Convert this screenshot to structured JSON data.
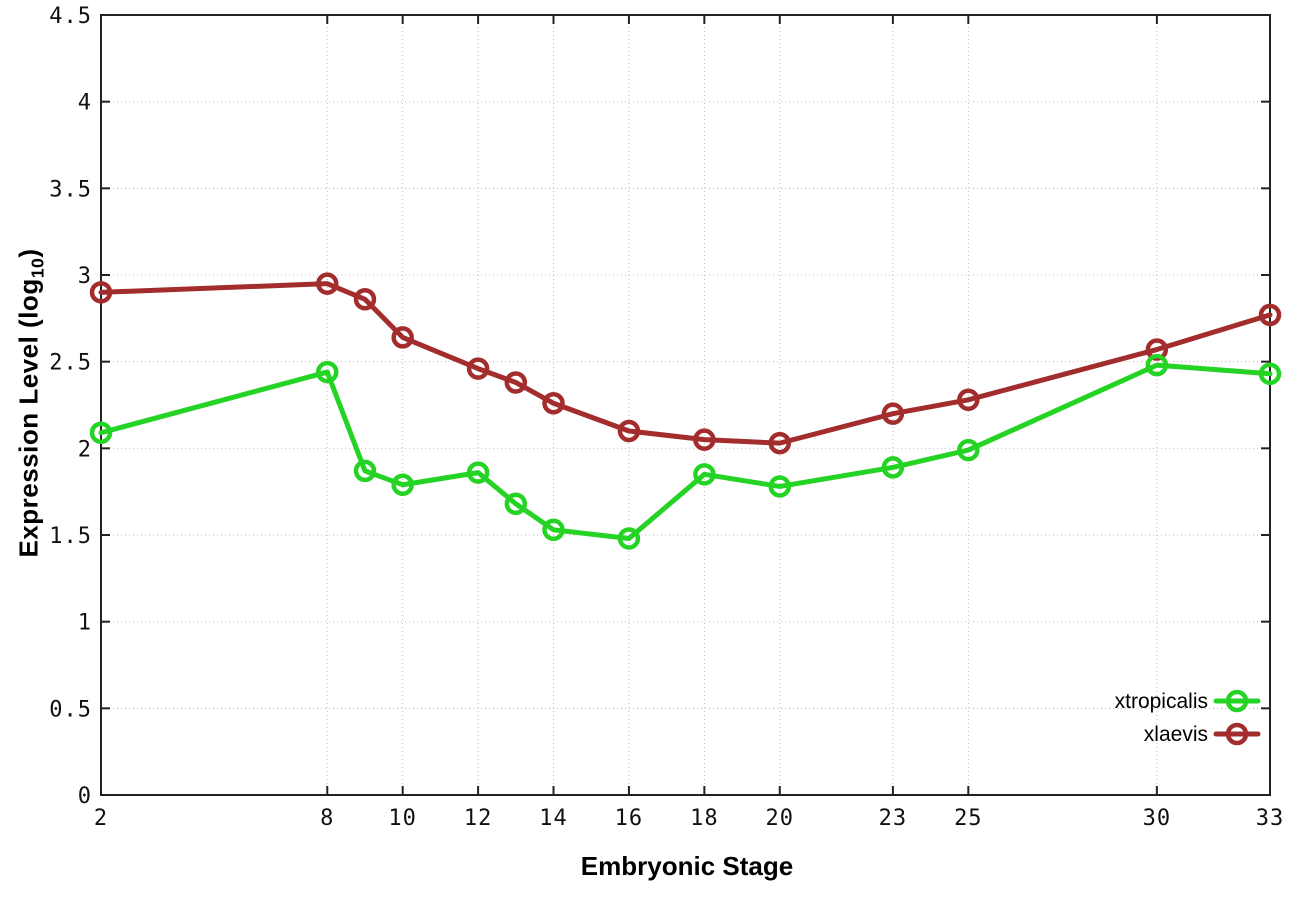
{
  "chart_data": {
    "type": "line",
    "title": "",
    "xlabel": "Embryonic Stage",
    "ylabel": "Expression Level (log10)",
    "ylabel_parts": {
      "prefix": "Expression Level (log",
      "sub": "10",
      "suffix": ")"
    },
    "x": [
      2,
      8,
      9,
      10,
      12,
      13,
      14,
      16,
      18,
      20,
      23,
      25,
      30,
      33
    ],
    "xticks": [
      2,
      8,
      10,
      12,
      14,
      16,
      18,
      20,
      23,
      25,
      30,
      33
    ],
    "yticks": [
      0,
      0.5,
      1,
      1.5,
      2,
      2.5,
      3,
      3.5,
      4,
      4.5
    ],
    "xlim": [
      2,
      33
    ],
    "ylim": [
      0,
      4.5
    ],
    "grid": true,
    "legend_position": "bottom-right",
    "marker": "open-circle",
    "series": [
      {
        "name": "xtropicalis",
        "color": "#25d325",
        "values": [
          2.09,
          2.44,
          1.87,
          1.79,
          1.86,
          1.68,
          1.53,
          1.48,
          1.85,
          1.78,
          1.89,
          1.99,
          2.48,
          2.43
        ]
      },
      {
        "name": "xlaevis",
        "color": "#a32c2c",
        "values": [
          2.9,
          2.95,
          2.86,
          2.64,
          2.46,
          2.38,
          2.26,
          2.1,
          2.05,
          2.03,
          2.2,
          2.28,
          2.57,
          2.77
        ]
      }
    ],
    "colors": {
      "background": "#ffffff",
      "grid": "#bbbbbb",
      "axis": "#222222",
      "text": "#000000"
    }
  }
}
